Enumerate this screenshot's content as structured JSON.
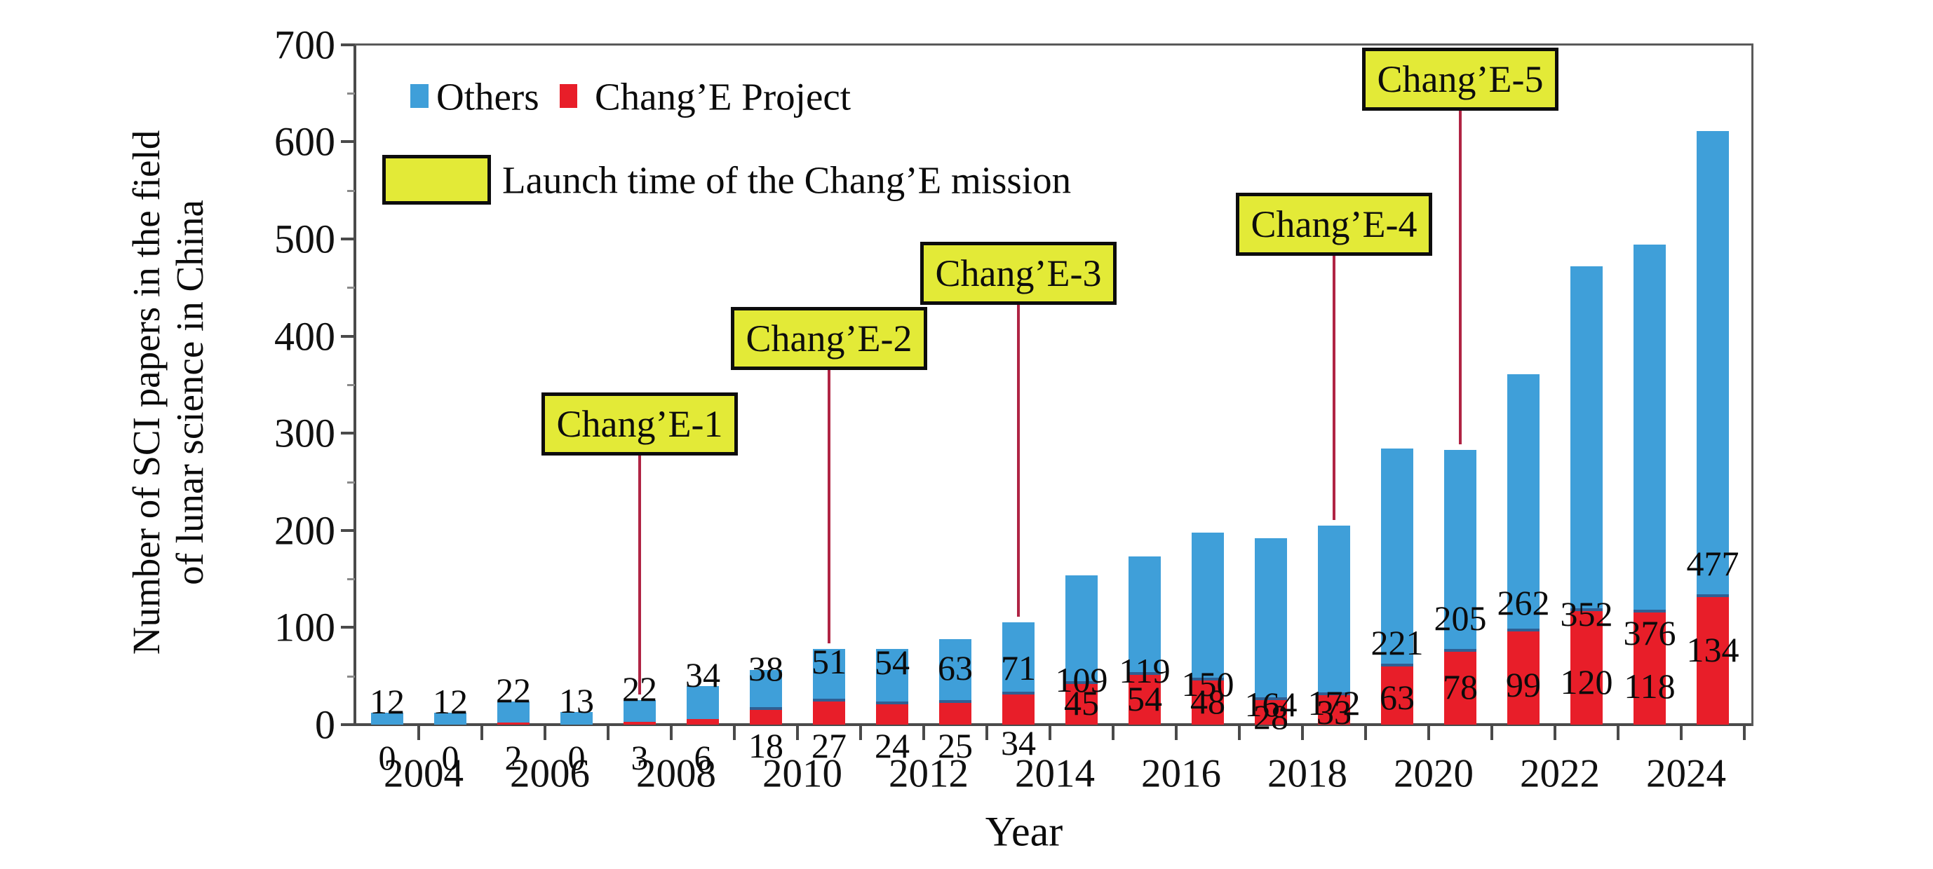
{
  "figure": {
    "ylabel_line1": "Number of SCI papers in the field",
    "ylabel_line2": "of lunar science in China",
    "xlabel": "Year"
  },
  "legend": {
    "others": "Others",
    "change": "Chang’E Project",
    "launch": "Launch time of the Chang’E mission"
  },
  "colors": {
    "others_blue": "#3f9fd9",
    "change_red": "#e81e29",
    "junction_edge": "#2f5f93",
    "launch_yellow": "#e3ea37",
    "mission_line": "#b02444",
    "axis": "#4a4a4a"
  },
  "chart_data": {
    "type": "bar",
    "stacked": true,
    "x": [
      2003,
      2004,
      2005,
      2006,
      2007,
      2008,
      2009,
      2010,
      2011,
      2012,
      2013,
      2014,
      2015,
      2016,
      2017,
      2018,
      2019,
      2020,
      2021,
      2022,
      2023,
      2024
    ],
    "series": [
      {
        "name": "Chang’E Project",
        "color": "#e81e29",
        "values": [
          0,
          0,
          2,
          0,
          3,
          6,
          18,
          27,
          24,
          25,
          34,
          45,
          54,
          48,
          28,
          33,
          63,
          78,
          99,
          120,
          118,
          134
        ]
      },
      {
        "name": "Others",
        "color": "#3f9fd9",
        "values": [
          12,
          12,
          22,
          13,
          22,
          34,
          38,
          51,
          54,
          63,
          71,
          109,
          119,
          150,
          164,
          172,
          221,
          205,
          262,
          352,
          376,
          477
        ]
      }
    ],
    "ylim": [
      0,
      700
    ],
    "yticks": [
      0,
      100,
      200,
      300,
      400,
      500,
      600,
      700
    ],
    "xtick_labels": [
      2004,
      2006,
      2008,
      2010,
      2012,
      2014,
      2016,
      2018,
      2020,
      2022,
      2024
    ],
    "xlabel": "Year",
    "ylabel": "Number of SCI papers in the field of lunar science in China",
    "legend_position": "top-left",
    "grid": false
  },
  "missions": [
    {
      "label": "Chang’E-1",
      "year": 2007
    },
    {
      "label": "Chang’E-2",
      "year": 2010
    },
    {
      "label": "Chang’E-3",
      "year": 2013
    },
    {
      "label": "Chang’E-4",
      "year": 2018
    },
    {
      "label": "Chang’E-5",
      "year": 2020
    }
  ]
}
